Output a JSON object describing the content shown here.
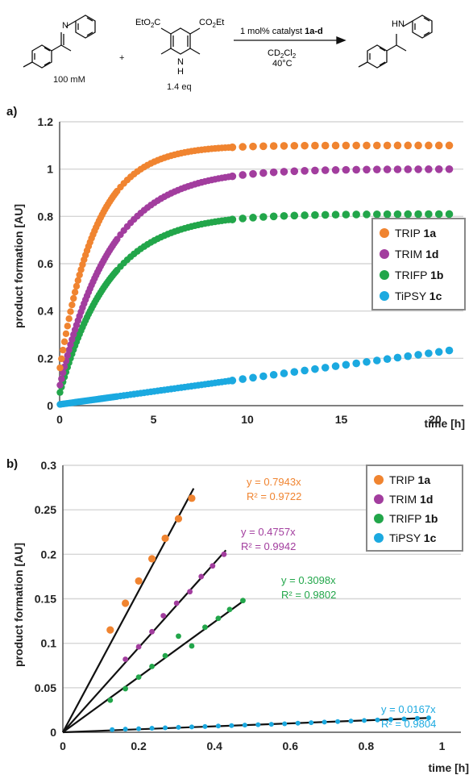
{
  "scheme": {
    "reactant_conc": "100  mM",
    "hantzsch_eq": "1.4  eq",
    "plus": "+",
    "ester_left": "EtO",
    "ester_left_sub": "2",
    "ester_left_c": "C",
    "ester_right": "CO",
    "ester_right_sub": "2",
    "ester_right_et": "Et",
    "nh_n": "N",
    "nh_h": "H",
    "product_hn": "HN",
    "imine_n": "N",
    "condition_1_pre": "1  mol%  catalyst  ",
    "condition_1_bold": "1a-d",
    "condition_2_a": "CD",
    "condition_2_sub1": "2",
    "condition_2_b": "Cl",
    "condition_2_sub2": "2",
    "condition_3": "40°C"
  },
  "colors": {
    "TRIP": "#f08430",
    "TRIM": "#a23d9e",
    "TRIFP": "#22a64a",
    "TiPSY": "#1ba9e0"
  },
  "chart_data": [
    {
      "type": "scatter",
      "panel_label": "a)",
      "xlabel": "time [h]",
      "ylabel": "product formation [AU]",
      "xlim": [
        0,
        21.5
      ],
      "ylim": [
        0,
        1.2
      ],
      "xticks": [
        0,
        5,
        10,
        15,
        20
      ],
      "yticks": [
        0,
        0.2,
        0.4,
        0.6,
        0.8,
        1,
        1.2
      ],
      "ytick_labels": [
        "0",
        "0.2",
        "0.4",
        "0.6",
        "0.8",
        "1",
        "1.2"
      ],
      "grid": "horizontal",
      "legend_position": "right-middle",
      "series": [
        {
          "name": "TRIP",
          "name_bold": "1a",
          "color": "#f08430",
          "model": {
            "a": 1.1,
            "k": 0.52,
            "c": 0.15
          },
          "t_max": 21
        },
        {
          "name": "TRIM",
          "name_bold": "1d",
          "color": "#a23d9e",
          "model": {
            "a": 1.0,
            "k": 0.37,
            "c": 0.08
          },
          "t_max": 21
        },
        {
          "name": "TRIFP",
          "name_bold": "1b",
          "color": "#22a64a",
          "model": {
            "a": 0.81,
            "k": 0.38,
            "c": 0.05
          },
          "t_max": 21
        },
        {
          "name": "TiPSY",
          "name_bold": "1c",
          "color": "#1ba9e0",
          "model": {
            "slope": 0.011,
            "c": 0.005
          },
          "t_max": 21
        }
      ]
    },
    {
      "type": "scatter",
      "panel_label": "b)",
      "xlabel": "time [h]",
      "ylabel": "product formation [AU]",
      "xlim": [
        0,
        1.05
      ],
      "ylim": [
        0,
        0.3
      ],
      "xticks": [
        0,
        0.2,
        0.4,
        0.6,
        0.8,
        1
      ],
      "xtick_labels": [
        "0",
        "0.2",
        "0.4",
        "0.6",
        "0.8",
        "1"
      ],
      "yticks": [
        0,
        0.05,
        0.1,
        0.15,
        0.2,
        0.25,
        0.3
      ],
      "ytick_labels": [
        "0",
        "0.05",
        "0.1",
        "0.15",
        "0.2",
        "0.25",
        "0.3"
      ],
      "grid": "horizontal",
      "legend_position": "top-right",
      "series": [
        {
          "name": "TRIP",
          "name_bold": "1a",
          "color": "#f08430",
          "x": [
            0.125,
            0.165,
            0.2,
            0.235,
            0.27,
            0.305,
            0.34
          ],
          "y": [
            0.115,
            0.145,
            0.17,
            0.195,
            0.218,
            0.24,
            0.263
          ],
          "fit_slope": 0.7943,
          "fit_x_end": 0.345,
          "equation": "y = 0.7943x",
          "r2": "R² = 0.9722"
        },
        {
          "name": "TRIM",
          "name_bold": "1d",
          "color": "#a23d9e",
          "x": [
            0.165,
            0.2,
            0.235,
            0.265,
            0.3,
            0.335,
            0.365,
            0.395,
            0.425
          ],
          "y": [
            0.082,
            0.096,
            0.113,
            0.131,
            0.145,
            0.158,
            0.175,
            0.187,
            0.2
          ],
          "fit_slope": 0.4757,
          "fit_x_end": 0.43,
          "equation": "y = 0.4757x",
          "r2": "R² = 0.9942"
        },
        {
          "name": "TRIFP",
          "name_bold": "1b",
          "color": "#22a64a",
          "x": [
            0.125,
            0.165,
            0.2,
            0.235,
            0.27,
            0.305,
            0.34,
            0.375,
            0.41,
            0.44,
            0.475
          ],
          "y": [
            0.036,
            0.049,
            0.062,
            0.074,
            0.086,
            0.108,
            0.097,
            0.118,
            0.128,
            0.138,
            0.148
          ],
          "fit_slope": 0.3098,
          "fit_x_end": 0.48,
          "equation": "y = 0.3098x",
          "r2": "R² = 0.9802"
        },
        {
          "name": "TiPSY",
          "name_bold": "1c",
          "color": "#1ba9e0",
          "x": [
            0.13,
            0.165,
            0.2,
            0.235,
            0.27,
            0.305,
            0.34,
            0.375,
            0.41,
            0.445,
            0.48,
            0.515,
            0.55,
            0.585,
            0.62,
            0.655,
            0.69,
            0.725,
            0.76,
            0.795,
            0.83,
            0.865,
            0.9,
            0.935,
            0.965
          ],
          "y": [
            0.003,
            0.0035,
            0.004,
            0.0045,
            0.005,
            0.0055,
            0.006,
            0.0065,
            0.007,
            0.0075,
            0.008,
            0.0085,
            0.009,
            0.0095,
            0.0102,
            0.0108,
            0.0114,
            0.012,
            0.0126,
            0.0132,
            0.0138,
            0.0144,
            0.015,
            0.0156,
            0.0162
          ],
          "fit_slope": 0.0167,
          "fit_x_end": 0.965,
          "equation": "y = 0.0167x",
          "r2": "R² = 0.9804"
        }
      ]
    }
  ]
}
